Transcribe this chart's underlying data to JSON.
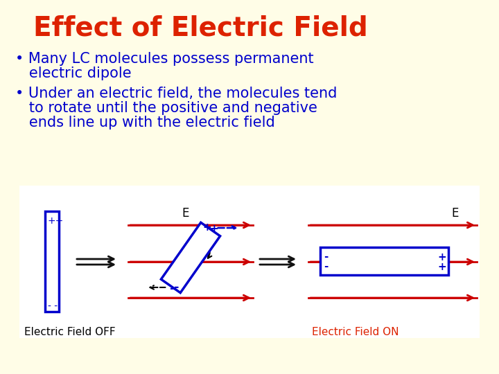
{
  "background_color": "#FFFDE7",
  "diagram_bg": "#FFFFFF",
  "title": "Effect of Electric Field",
  "title_color": "#DD2200",
  "title_fontsize": 28,
  "bullet_color": "#0000CC",
  "bullet_fontsize": 15,
  "bullet1_line1": "• Many LC molecules possess permanent",
  "bullet1_line2": "   electric dipole",
  "bullet2_line1": "• Under an electric field, the molecules tend",
  "bullet2_line2": "   to rotate until the positive and negative",
  "bullet2_line3": "   ends line up with the electric field",
  "label_off_color": "#000000",
  "label_on_color": "#DD2200",
  "label_off": "Electric Field OFF",
  "label_on": "Electric Field ON",
  "arrow_color": "#CC0000",
  "dark_arrow_color": "#111111",
  "blue_color": "#0000CC",
  "dashed_color": "#0000CC"
}
